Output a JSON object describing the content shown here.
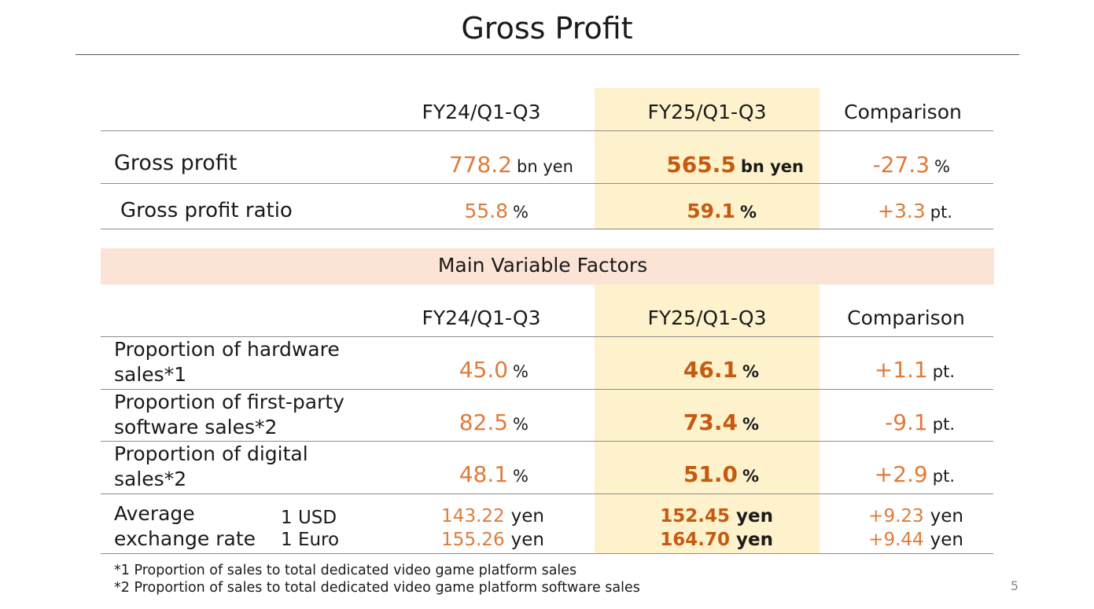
{
  "title": "Gross Profit",
  "columns": {
    "prev": "FY24/Q1-Q3",
    "curr": "FY25/Q1-Q3",
    "comparison": "Comparison"
  },
  "top_rows": [
    {
      "label": "Gross profit",
      "prev": "778.2",
      "prev_unit": "bn yen",
      "curr": "565.5",
      "curr_unit": "bn yen",
      "comp": "-27.3",
      "comp_unit": "%"
    },
    {
      "label": "Gross profit ratio",
      "prev": "55.8",
      "prev_unit": "%",
      "curr": "59.1",
      "curr_unit": "%",
      "comp": "+3.3",
      "comp_unit": "pt."
    }
  ],
  "factors_heading": "Main Variable Factors",
  "factor_rows": [
    {
      "label1": "Proportion of hardware",
      "label2": "sales*1",
      "prev": "45.0",
      "prev_unit": "%",
      "curr": "46.1",
      "curr_unit": "%",
      "comp": "+1.1",
      "comp_unit": "pt."
    },
    {
      "label1": "Proportion of first-party",
      "label2": "software sales*2",
      "prev": "82.5",
      "prev_unit": "%",
      "curr": "73.4",
      "curr_unit": "%",
      "comp": "-9.1",
      "comp_unit": "pt."
    },
    {
      "label1": "Proportion of digital",
      "label2": "sales*2",
      "prev": "48.1",
      "prev_unit": "%",
      "curr": "51.0",
      "curr_unit": "%",
      "comp": "+2.9",
      "comp_unit": "pt."
    }
  ],
  "exchange": {
    "label1": "Average",
    "label2": "exchange rate",
    "rows": [
      {
        "currency": "1 USD",
        "prev": "143.22",
        "curr": "152.45",
        "comp": "+9.23",
        "unit": "yen"
      },
      {
        "currency": "1 Euro",
        "prev": "155.26",
        "curr": "164.70",
        "comp": "+9.44",
        "unit": "yen"
      }
    ]
  },
  "footnotes": [
    "*1 Proportion of sales to total dedicated video game platform sales",
    "*2 Proportion of sales to total dedicated video game platform software sales"
  ],
  "page_number": "5"
}
